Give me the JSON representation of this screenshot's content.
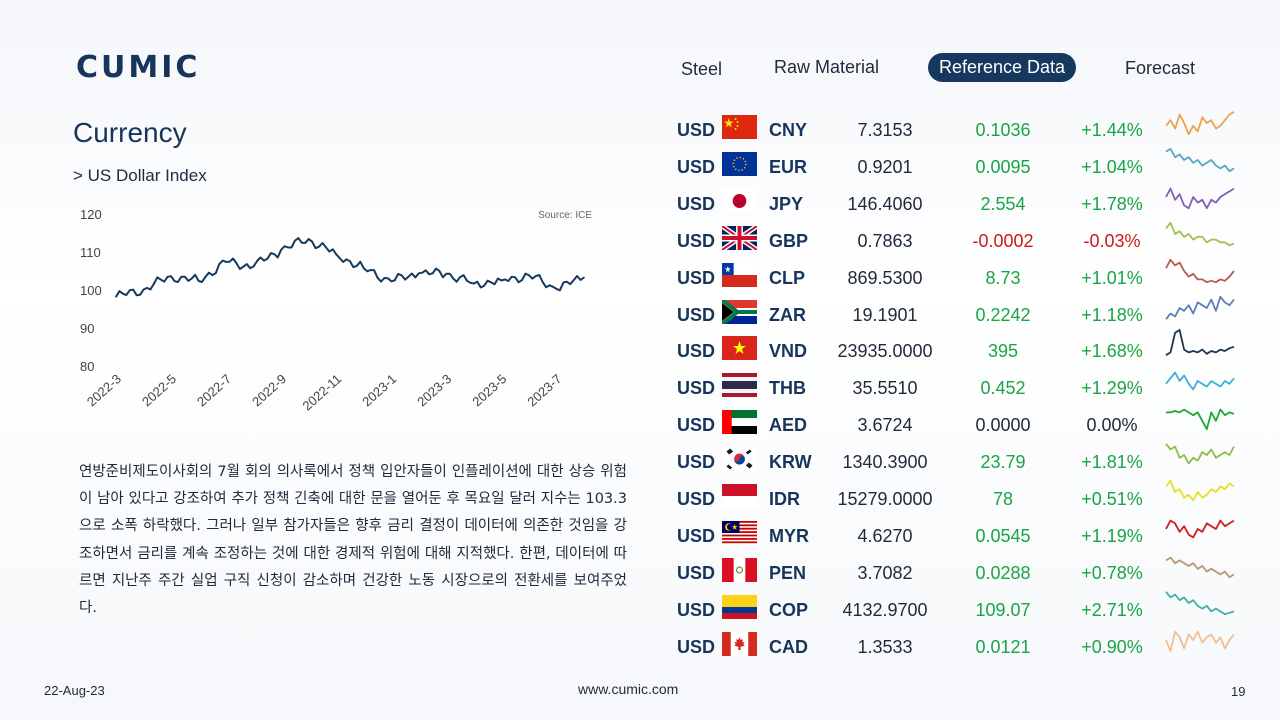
{
  "brand": {
    "logo_text": "CUMIC"
  },
  "nav": {
    "tabs": [
      {
        "label": "Steel"
      },
      {
        "label": "Raw Material"
      },
      {
        "label": "Reference Data",
        "active": true
      },
      {
        "label": "Forecast"
      }
    ]
  },
  "section": {
    "title": "Currency",
    "subtitle": "> US Dollar Index"
  },
  "chart_data": {
    "type": "line",
    "title": "",
    "source_label": "Source: ICE",
    "xlabel": "",
    "ylabel": "",
    "ylim": [
      80,
      120
    ],
    "yticks": [
      "120",
      "110",
      "100",
      "90",
      "80"
    ],
    "xticks": [
      "2022-3",
      "2022-5",
      "2022-7",
      "2022-9",
      "2022-11",
      "2023-1",
      "2023-3",
      "2023-5",
      "2023-7"
    ],
    "grid": false,
    "x": [
      "2022-3",
      "2022-4",
      "2022-5",
      "2022-6",
      "2022-7",
      "2022-8",
      "2022-9",
      "2022-10",
      "2022-11",
      "2022-12",
      "2023-1",
      "2023-2",
      "2023-3",
      "2023-4",
      "2023-5",
      "2023-6",
      "2023-7",
      "2023-8"
    ],
    "series": [
      {
        "color": "#163a5c",
        "values": [
          98.2,
          100.1,
          103.6,
          102.4,
          107.4,
          106.2,
          110.6,
          113.4,
          109.4,
          105.7,
          102.3,
          104.4,
          104.3,
          101.7,
          102.5,
          103.9,
          100.3,
          103.3
        ]
      }
    ]
  },
  "commentary": "연방준비제도이사회의 7월 회의 의사록에서 정책 입안자들이 인플레이션에 대한 상승 위험이 남아 있다고 강조하여 추가 정책 긴축에 대한 문을 열어둔 후 목요일 달러 지수는 103.3으로 소폭 하락했다. 그러나 일부 참가자들은 향후 금리 결정이  데이터에 의존한 것임을 강조하면서 금리를 계속 조정하는 것에 대한 경제적 위험에 대해 지적했다. 한편, 데이터에 따르면 지난주 주간 실업 구직 신청이 감소하며 건강한 노동 시장으로의 전환세를 보여주었다.",
  "currencies": [
    {
      "base": "USD",
      "code": "CNY",
      "flag": "cn",
      "rate": "7.3153",
      "change": "0.1036",
      "pct": "+1.44%",
      "trend": "pos",
      "spark_color": "#f0a050",
      "spark": [
        0.6,
        0.4,
        0.7,
        0.2,
        0.5,
        0.9,
        0.6,
        0.8,
        0.3,
        0.5,
        0.4,
        0.7,
        0.6,
        0.4,
        0.2,
        0.1
      ]
    },
    {
      "base": "USD",
      "code": "EUR",
      "flag": "eu",
      "rate": "0.9201",
      "change": "0.0095",
      "pct": "+1.04%",
      "trend": "pos",
      "spark_color": "#5aa8c0",
      "spark": [
        0.2,
        0.1,
        0.4,
        0.3,
        0.5,
        0.4,
        0.6,
        0.5,
        0.7,
        0.6,
        0.5,
        0.7,
        0.8,
        0.7,
        0.9,
        0.8
      ]
    },
    {
      "base": "USD",
      "code": "JPY",
      "flag": "jp",
      "rate": "146.4060",
      "change": "2.554",
      "pct": "+1.78%",
      "trend": "pos",
      "spark_color": "#8060b0",
      "spark": [
        0.5,
        0.2,
        0.6,
        0.4,
        0.8,
        0.9,
        0.5,
        0.7,
        0.6,
        0.9,
        0.6,
        0.7,
        0.5,
        0.4,
        0.3,
        0.2
      ]
    },
    {
      "base": "USD",
      "code": "GBP",
      "flag": "gb",
      "rate": "0.7863",
      "change": "-0.0002",
      "pct": "-0.03%",
      "trend": "neg",
      "spark_color": "#a0c050",
      "spark": [
        0.3,
        0.1,
        0.5,
        0.4,
        0.6,
        0.5,
        0.7,
        0.6,
        0.6,
        0.8,
        0.7,
        0.7,
        0.8,
        0.8,
        0.9,
        0.85
      ]
    },
    {
      "base": "USD",
      "code": "CLP",
      "flag": "cl",
      "rate": "869.5300",
      "change": "8.73",
      "pct": "+1.01%",
      "trend": "pos",
      "spark_color": "#b85a50",
      "spark": [
        0.4,
        0.1,
        0.3,
        0.2,
        0.5,
        0.7,
        0.6,
        0.8,
        0.8,
        0.9,
        0.85,
        0.9,
        0.8,
        0.85,
        0.7,
        0.5
      ]
    },
    {
      "base": "USD",
      "code": "ZAR",
      "flag": "za",
      "rate": "19.1901",
      "change": "0.2242",
      "pct": "+1.18%",
      "trend": "pos",
      "spark_color": "#5a7fb8",
      "spark": [
        0.9,
        0.7,
        0.8,
        0.5,
        0.6,
        0.4,
        0.7,
        0.3,
        0.4,
        0.5,
        0.2,
        0.6,
        0.1,
        0.3,
        0.4,
        0.2
      ]
    },
    {
      "base": "USD",
      "code": "VND",
      "flag": "vn",
      "rate": "23935.0000",
      "change": "395",
      "pct": "+1.68%",
      "trend": "pos",
      "spark_color": "#1f3550",
      "spark": [
        0.9,
        0.8,
        0.1,
        0.0,
        0.7,
        0.8,
        0.75,
        0.8,
        0.7,
        0.85,
        0.75,
        0.8,
        0.7,
        0.75,
        0.65,
        0.6
      ]
    },
    {
      "base": "USD",
      "code": "THB",
      "flag": "th",
      "rate": "35.5510",
      "change": "0.452",
      "pct": "+1.29%",
      "trend": "pos",
      "spark_color": "#40b0d8",
      "spark": [
        0.6,
        0.4,
        0.2,
        0.5,
        0.3,
        0.6,
        0.8,
        0.5,
        0.6,
        0.7,
        0.5,
        0.6,
        0.7,
        0.5,
        0.6,
        0.4
      ]
    },
    {
      "base": "USD",
      "code": "AED",
      "flag": "ae",
      "rate": "3.6724",
      "change": "0.0000",
      "pct": "0.00%",
      "trend": "zero",
      "spark_color": "#20a830",
      "spark": [
        0.3,
        0.3,
        0.25,
        0.3,
        0.2,
        0.3,
        0.4,
        0.3,
        0.6,
        0.9,
        0.3,
        0.6,
        0.2,
        0.4,
        0.3,
        0.35
      ]
    },
    {
      "base": "USD",
      "code": "KRW",
      "flag": "kr",
      "rate": "1340.3900",
      "change": "23.79",
      "pct": "+1.81%",
      "trend": "pos",
      "spark_color": "#88c048",
      "spark": [
        0.1,
        0.3,
        0.2,
        0.6,
        0.5,
        0.8,
        0.6,
        0.7,
        0.4,
        0.5,
        0.3,
        0.6,
        0.5,
        0.4,
        0.5,
        0.2
      ]
    },
    {
      "base": "USD",
      "code": "IDR",
      "flag": "id",
      "rate": "15279.0000",
      "change": "78",
      "pct": "+0.51%",
      "trend": "pos",
      "spark_color": "#e8e020",
      "spark": [
        0.3,
        0.1,
        0.5,
        0.4,
        0.7,
        0.6,
        0.8,
        0.5,
        0.7,
        0.6,
        0.4,
        0.5,
        0.3,
        0.4,
        0.2,
        0.3
      ]
    },
    {
      "base": "USD",
      "code": "MYR",
      "flag": "my",
      "rate": "4.6270",
      "change": "0.0545",
      "pct": "+1.19%",
      "trend": "pos",
      "spark_color": "#cc2020",
      "spark": [
        0.5,
        0.2,
        0.3,
        0.6,
        0.4,
        0.7,
        0.8,
        0.5,
        0.6,
        0.3,
        0.4,
        0.5,
        0.2,
        0.4,
        0.3,
        0.2
      ]
    },
    {
      "base": "USD",
      "code": "PEN",
      "flag": "pe",
      "rate": "3.7082",
      "change": "0.0288",
      "pct": "+0.78%",
      "trend": "pos",
      "spark_color": "#b89a70",
      "spark": [
        0.3,
        0.2,
        0.4,
        0.3,
        0.4,
        0.5,
        0.4,
        0.6,
        0.5,
        0.7,
        0.6,
        0.7,
        0.8,
        0.7,
        0.9,
        0.8
      ]
    },
    {
      "base": "USD",
      "code": "COP",
      "flag": "co",
      "rate": "4132.9700",
      "change": "109.07",
      "pct": "+2.71%",
      "trend": "pos",
      "spark_color": "#40b0a8",
      "spark": [
        0.1,
        0.3,
        0.2,
        0.4,
        0.3,
        0.5,
        0.4,
        0.6,
        0.7,
        0.6,
        0.8,
        0.7,
        0.8,
        0.9,
        0.85,
        0.8
      ]
    },
    {
      "base": "USD",
      "code": "CAD",
      "flag": "ca",
      "rate": "1.3533",
      "change": "0.0121",
      "pct": "+0.90%",
      "trend": "pos",
      "spark_color": "#f0c090",
      "spark": [
        0.5,
        0.9,
        0.2,
        0.4,
        0.8,
        0.3,
        0.5,
        0.2,
        0.6,
        0.4,
        0.3,
        0.6,
        0.4,
        0.8,
        0.5,
        0.3
      ]
    }
  ],
  "footer": {
    "date": "22-Aug-23",
    "url": "www.cumic.com",
    "page": "19"
  }
}
